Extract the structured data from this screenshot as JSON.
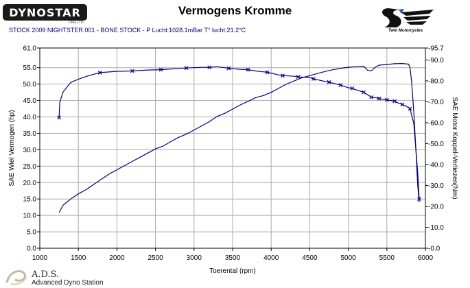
{
  "header": {
    "logo_text": "DYNOSTAR",
    "logo_subtext": "CRG LTD",
    "title": "Vermogens Kromme",
    "subtitle": "STOCK 2009 NIGHTSTER.001 - BONE STOCK  - P Lucht:1028.1mBar T° lucht:21.2°C",
    "brand_text": "Twin Motorcycles"
  },
  "footer": {
    "name": "A.D.S.",
    "tagline": "Advanced Dyno Station"
  },
  "colors": {
    "series": "#000080",
    "grid": "#a9a9a9",
    "axis": "#000000"
  },
  "chart_data": {
    "type": "line",
    "title": "Vermogens Kromme",
    "xlabel": "Toerental (rpm)",
    "ylabel": "SAE Wiel Vermogen (hp)",
    "y2label": "SAE Motor Koppel-Verliezen(Nm)",
    "xlim": [
      1000,
      6000
    ],
    "ylim": [
      0.0,
      61.0
    ],
    "y2lim": [
      0.0,
      95.7
    ],
    "x_ticks": [
      "1000",
      "1500",
      "2000",
      "2500",
      "3000",
      "3500",
      "4000",
      "4500",
      "5000",
      "5500",
      "6000"
    ],
    "y_ticks": [
      "0.0",
      "5.0",
      "10.0",
      "15.0",
      "20.0",
      "25.0",
      "30.0",
      "35.0",
      "40.0",
      "45.0",
      "50.0",
      "55.0",
      "61.0"
    ],
    "y2_ticks": [
      "0.0",
      "10.0",
      "20.0",
      "30.0",
      "40.0",
      "50.0",
      "60.0",
      "70.0",
      "80.0",
      "90.0",
      "95.7"
    ],
    "grid": true,
    "series": [
      {
        "axis": "left",
        "marker": "x",
        "x": [
          1250,
          1260,
          1300,
          1350,
          1400,
          1500,
          1600,
          1700,
          1780,
          1900,
          2000,
          2200,
          2400,
          2570,
          2700,
          2900,
          3000,
          3100,
          3200,
          3300,
          3400,
          3450,
          3600,
          3700,
          3800,
          3950,
          4100,
          4150,
          4300,
          4350,
          4500,
          4550,
          4700,
          4750,
          4850,
          4900,
          5000,
          5050,
          5100,
          5200,
          5300,
          5350,
          5400,
          5450,
          5500,
          5550,
          5600,
          5650,
          5700,
          5750,
          5800,
          5850,
          5900,
          5920
        ],
        "y": [
          39.8,
          44.5,
          47.5,
          49.0,
          50.5,
          51.5,
          52.3,
          53.0,
          53.5,
          53.7,
          53.9,
          54.0,
          54.3,
          54.4,
          54.6,
          54.9,
          55.0,
          55.1,
          55.1,
          55.3,
          55.0,
          54.8,
          54.5,
          54.4,
          54.0,
          53.6,
          52.8,
          52.6,
          52.4,
          52.2,
          52.0,
          51.6,
          50.8,
          50.6,
          50.0,
          49.7,
          48.9,
          48.7,
          48.3,
          47.5,
          46.0,
          45.9,
          45.6,
          45.4,
          45.2,
          45.0,
          44.8,
          44.2,
          43.8,
          43.3,
          42.5,
          38.0,
          23.0,
          15.0
        ]
      },
      {
        "axis": "right",
        "marker": "none",
        "x": [
          1250,
          1300,
          1350,
          1400,
          1500,
          1600,
          1700,
          1800,
          1900,
          2000,
          2100,
          2200,
          2300,
          2400,
          2500,
          2600,
          2700,
          2800,
          2900,
          3000,
          3100,
          3200,
          3300,
          3400,
          3500,
          3600,
          3700,
          3800,
          3900,
          4000,
          4100,
          4200,
          4300,
          4400,
          4500,
          4600,
          4700,
          4800,
          4900,
          5000,
          5100,
          5200,
          5250,
          5300,
          5350,
          5400,
          5500,
          5600,
          5700,
          5780,
          5800,
          5820,
          5850,
          5880,
          5900,
          5920
        ],
        "y": [
          17.0,
          20.5,
          22.0,
          23.5,
          26.0,
          28.0,
          30.5,
          33.0,
          35.5,
          37.5,
          39.5,
          41.5,
          43.5,
          45.5,
          47.5,
          48.8,
          51.0,
          53.0,
          54.5,
          56.5,
          58.5,
          60.5,
          63.0,
          64.5,
          66.5,
          68.5,
          70.2,
          72.0,
          73.0,
          74.5,
          76.5,
          78.5,
          80.0,
          81.5,
          82.5,
          83.5,
          84.5,
          85.3,
          86.0,
          86.5,
          86.8,
          87.0,
          85.0,
          84.8,
          86.5,
          87.5,
          87.8,
          88.2,
          88.3,
          88.0,
          86.5,
          80.0,
          65.0,
          45.0,
          30.0,
          22.0
        ]
      }
    ]
  }
}
